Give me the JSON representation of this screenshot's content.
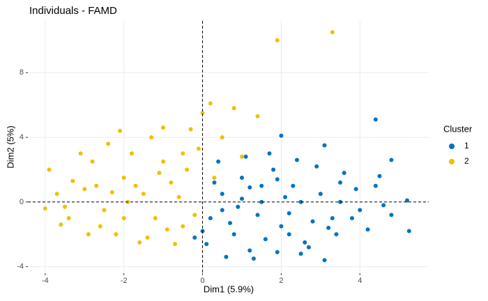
{
  "chart_data": {
    "type": "scatter",
    "title": "Individuals - FAMD",
    "x_label": "Dim1 (5.9%)",
    "y_label": "Dim2 (5%)",
    "legend_title": "Cluster",
    "legend": "right",
    "grid": true,
    "reference_lines": {
      "x": 0,
      "y": 0
    },
    "xlim": [
      -4.44,
      5.75
    ],
    "ylim": [
      -4.4,
      11.2
    ],
    "xticks": [
      -4,
      -2,
      0,
      2,
      4
    ],
    "yticks": [
      -4,
      0,
      4,
      8
    ],
    "series": [
      {
        "name": "1",
        "color": "#0073c2",
        "x": [
          0.2,
          0.5,
          0.8,
          1.0,
          1.2,
          1.5,
          1.8,
          2.0,
          2.3,
          2.6,
          3.0,
          3.3,
          3.6,
          4.0,
          4.4,
          4.8,
          5.2,
          0.1,
          0.4,
          0.9,
          1.3,
          1.7,
          2.1,
          2.5,
          2.9,
          3.4,
          3.9,
          4.5,
          0.3,
          0.7,
          1.1,
          1.6,
          2.2,
          2.8,
          3.5,
          4.2,
          1.0,
          1.9,
          2.7,
          3.1,
          0.6,
          1.4,
          2.4,
          3.8,
          4.6,
          0.0,
          -0.2,
          1.2,
          2.0,
          3.2,
          5.25,
          4.4,
          1.9,
          3.1,
          4.8,
          0.5,
          1.5,
          2.5,
          3.5,
          2.2
        ],
        "values": [
          -1.0,
          0.5,
          -2.0,
          1.5,
          -3.0,
          0.0,
          2.0,
          -1.5,
          1.0,
          -2.5,
          0.5,
          -1.0,
          1.8,
          -0.5,
          1.0,
          -0.8,
          0.1,
          -2.6,
          2.5,
          -0.3,
          -3.5,
          3.0,
          0.3,
          -3.2,
          2.2,
          -2.0,
          0.8,
          1.6,
          1.2,
          -1.3,
          2.8,
          -2.3,
          -0.7,
          -1.2,
          0.0,
          -1.7,
          0.2,
          1.4,
          -2.8,
          3.5,
          -3.4,
          -0.8,
          2.6,
          -1.0,
          -0.2,
          -1.8,
          -2.2,
          0.9,
          4.1,
          -1.6,
          -1.8,
          5.1,
          -3.1,
          -3.6,
          2.6,
          -0.5,
          1.0,
          0.0,
          1.2,
          -2.0
        ]
      },
      {
        "name": "2",
        "color": "#efc000",
        "x": [
          -1.5,
          -2.0,
          -2.5,
          -3.0,
          -3.5,
          -3.9,
          -4.0,
          -1.0,
          -0.5,
          -1.2,
          -2.2,
          -1.8,
          -0.8,
          -0.3,
          0.0,
          0.2,
          0.5,
          0.8,
          1.4,
          1.0,
          -2.8,
          -3.3,
          -2.6,
          -1.6,
          -0.9,
          -1.9,
          -2.4,
          -2.1,
          -1.3,
          -0.6,
          -3.7,
          -3.4,
          -2.9,
          -1.1,
          -0.4,
          -1.7,
          -2.3,
          -0.2,
          0.3,
          -1.4,
          -3.1,
          -2.0,
          -0.7,
          -1.0,
          -0.1,
          -2.7,
          1.9,
          3.3,
          -3.6,
          -0.5
        ],
        "values": [
          0.5,
          1.5,
          -0.5,
          0.8,
          -0.3,
          2.0,
          -0.4,
          2.5,
          3.0,
          -1.0,
          -2.0,
          3.0,
          1.2,
          4.5,
          5.5,
          6.1,
          4.0,
          5.8,
          5.3,
          2.8,
          2.5,
          1.3,
          -1.5,
          -2.5,
          -1.7,
          0.0,
          3.6,
          4.4,
          4.0,
          0.3,
          0.5,
          -1.0,
          -2.0,
          1.8,
          2.0,
          1.0,
          0.6,
          -0.8,
          1.5,
          -2.2,
          3.0,
          -1.0,
          -2.6,
          4.6,
          3.3,
          1.0,
          10.0,
          10.5,
          -1.4,
          -1.5
        ]
      }
    ]
  }
}
